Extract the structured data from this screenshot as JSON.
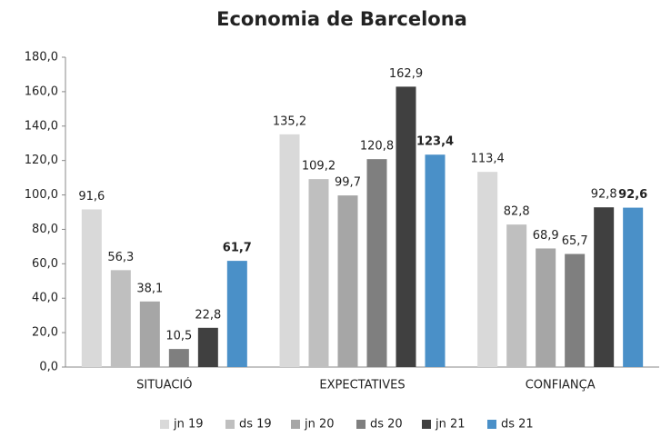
{
  "chart_data": {
    "type": "bar",
    "title": "Economia de Barcelona",
    "categories": [
      "SITUACIÓ",
      "EXPECTATIVES",
      "CONFIANÇA"
    ],
    "series": [
      {
        "name": "jn 19",
        "color": "#d9d9d9",
        "values": [
          91.6,
          135.2,
          113.4
        ],
        "value_labels": [
          "91,6",
          "135,2",
          "113,4"
        ]
      },
      {
        "name": "ds 19",
        "color": "#bfbfbf",
        "values": [
          56.3,
          109.2,
          82.8
        ],
        "value_labels": [
          "56,3",
          "109,2",
          "82,8"
        ]
      },
      {
        "name": "jn 20",
        "color": "#a6a6a6",
        "values": [
          38.1,
          99.7,
          68.9
        ],
        "value_labels": [
          "38,1",
          "99,7",
          "68,9"
        ]
      },
      {
        "name": "ds 20",
        "color": "#7f7f7f",
        "values": [
          10.5,
          120.8,
          65.7
        ],
        "value_labels": [
          "10,5",
          "120,8",
          "65,7"
        ]
      },
      {
        "name": "jn 21",
        "color": "#404040",
        "values": [
          22.8,
          162.9,
          92.8
        ],
        "value_labels": [
          "22,8",
          "162,9",
          "92,8"
        ]
      },
      {
        "name": "ds 21",
        "color": "#4a90c8",
        "values": [
          61.7,
          123.4,
          92.6
        ],
        "value_labels": [
          "61,7",
          "123,4",
          "92,6"
        ]
      }
    ],
    "ylim": [
      0,
      180
    ],
    "yticks": [
      {
        "value": 0,
        "label": "0,0"
      },
      {
        "value": 20,
        "label": "20,0"
      },
      {
        "value": 40,
        "label": "40,0"
      },
      {
        "value": 60,
        "label": "60,0"
      },
      {
        "value": 80,
        "label": "80,0"
      },
      {
        "value": 100,
        "label": "100,0"
      },
      {
        "value": 120,
        "label": "120,0"
      },
      {
        "value": 140,
        "label": "140,0"
      },
      {
        "value": 160,
        "label": "160,0"
      },
      {
        "value": 180,
        "label": "180,0"
      }
    ],
    "grid": false,
    "legend": "bottom"
  }
}
